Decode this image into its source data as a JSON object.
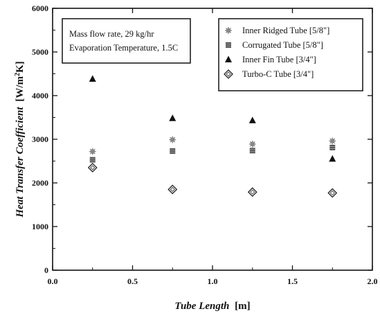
{
  "chart_data": {
    "type": "scatter",
    "title": "",
    "xlabel_italic": "Tube Length",
    "xlabel_unit": "[m]",
    "ylabel_italic": "Heat Transfer Coefficient",
    "ylabel_unit_pre": "[W/m",
    "ylabel_unit_sup": "2",
    "ylabel_unit_post": "K]",
    "xlim": [
      0.0,
      2.0
    ],
    "ylim": [
      0,
      6000
    ],
    "xticks": [
      "0.0",
      "0.5",
      "1.0",
      "1.5",
      "2.0"
    ],
    "xtick_values": [
      0.0,
      0.5,
      1.0,
      1.5,
      2.0
    ],
    "yticks": [
      "0",
      "1000",
      "2000",
      "3000",
      "4000",
      "5000",
      "6000"
    ],
    "ytick_values": [
      0,
      1000,
      2000,
      3000,
      4000,
      5000,
      6000
    ],
    "grid": false,
    "legend_position": "top-right",
    "annotation_lines": [
      "Mass flow rate, 29 kg/hr",
      "Evaporation Temperature, 1.5C"
    ],
    "series": [
      {
        "name": "Inner Ridged Tube [5/8\"]",
        "marker": "starburst",
        "color": "#888888",
        "x": [
          0.25,
          0.75,
          1.25,
          1.75
        ],
        "y": [
          2720,
          2990,
          2890,
          2960
        ]
      },
      {
        "name": "Corrugated Tube [5/8\"]",
        "marker": "square",
        "color": "#555555",
        "x": [
          0.25,
          0.75,
          1.25,
          1.75
        ],
        "y": [
          2530,
          2730,
          2740,
          2810
        ]
      },
      {
        "name": "Inner Fin Tube [3/4\"]",
        "marker": "triangle",
        "color": "#111111",
        "x": [
          0.25,
          0.75,
          1.25,
          1.75
        ],
        "y": [
          4380,
          3480,
          3430,
          2550
        ]
      },
      {
        "name": "Turbo-C Tube [3/4\"]",
        "marker": "diamond-open",
        "color": "#222222",
        "x": [
          0.25,
          0.75,
          1.25,
          1.75
        ],
        "y": [
          2350,
          1850,
          1790,
          1770
        ]
      }
    ]
  }
}
